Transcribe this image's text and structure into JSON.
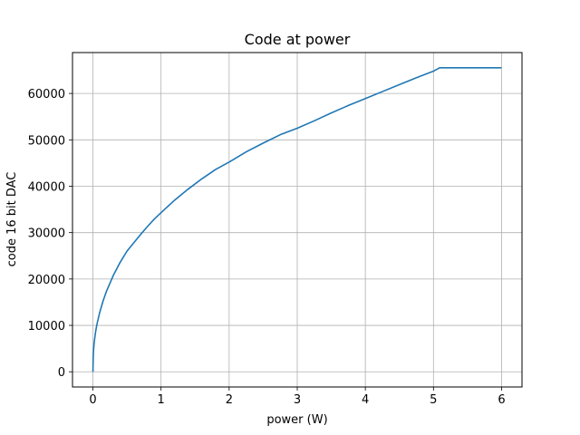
{
  "chart_data": {
    "type": "line",
    "title": "Code at power",
    "xlabel": "power (W)",
    "ylabel": "code 16 bit DAC",
    "xlim": [
      -0.3,
      6.3
    ],
    "ylim": [
      -3277,
      68812
    ],
    "xticks": [
      0,
      1,
      2,
      3,
      4,
      5,
      6
    ],
    "xtick_labels": [
      "0",
      "1",
      "2",
      "3",
      "4",
      "5",
      "6"
    ],
    "yticks": [
      0,
      10000,
      20000,
      30000,
      40000,
      50000,
      60000
    ],
    "ytick_labels": [
      "0",
      "10000",
      "20000",
      "30000",
      "40000",
      "50000",
      "60000"
    ],
    "grid": true,
    "series": [
      {
        "color": "#1f77b4",
        "x": [
          0,
          0.005,
          0.01,
          0.02,
          0.04,
          0.06,
          0.1,
          0.15,
          0.2,
          0.3,
          0.4,
          0.5,
          0.6,
          0.7,
          0.8,
          0.9,
          1.0,
          1.2,
          1.4,
          1.6,
          1.8,
          2.0,
          2.25,
          2.5,
          2.75,
          3.0,
          3.25,
          3.5,
          3.75,
          4.0,
          4.25,
          4.5,
          4.75,
          5.0,
          5.09,
          5.5,
          6.0
        ],
        "y": [
          0,
          3600,
          4900,
          6500,
          8700,
          10300,
          12800,
          15300,
          17400,
          20800,
          23600,
          26000,
          27800,
          29600,
          31300,
          32900,
          34300,
          37000,
          39400,
          41600,
          43600,
          45200,
          47400,
          49300,
          51100,
          52500,
          54100,
          55800,
          57400,
          58900,
          60400,
          61900,
          63400,
          64800,
          65535,
          65535,
          65535
        ]
      }
    ]
  }
}
